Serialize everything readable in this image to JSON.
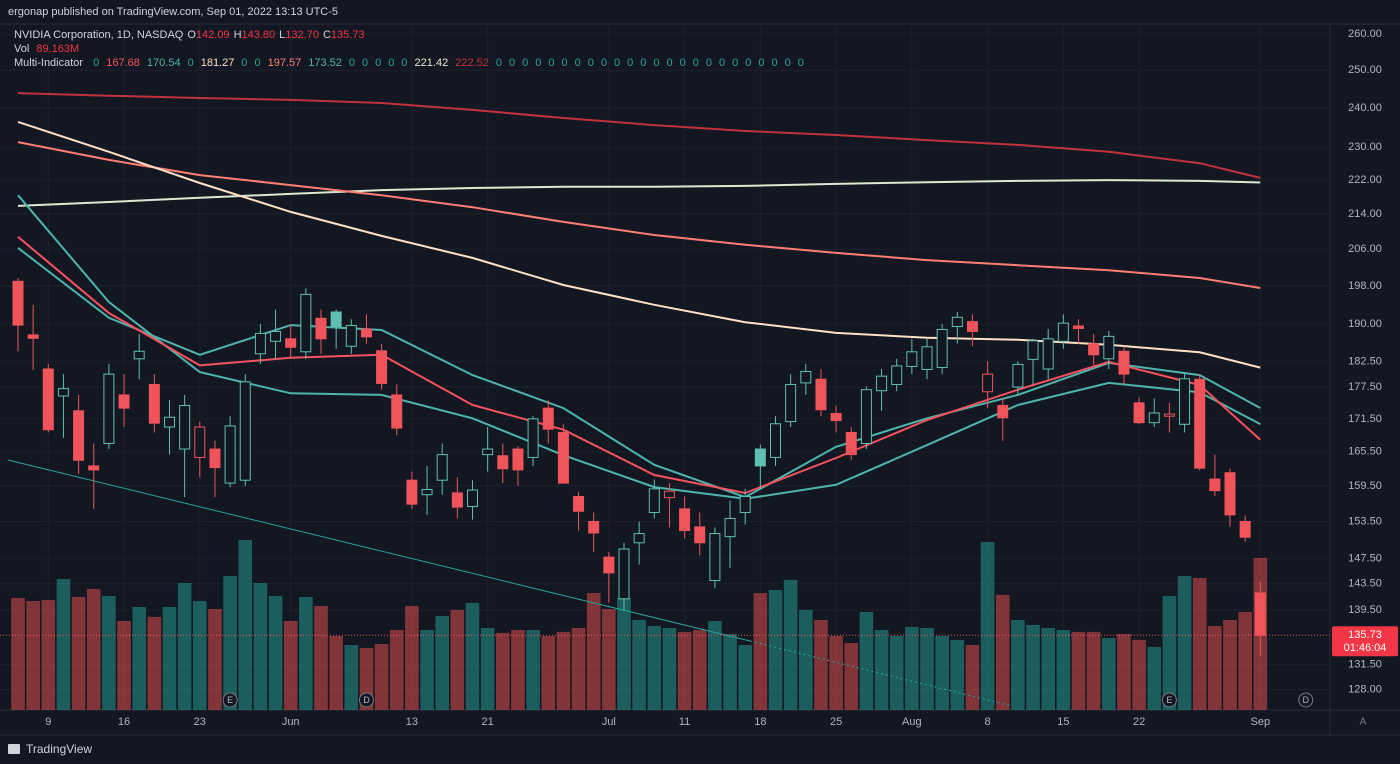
{
  "header": {
    "publisher": "ergonap published on TradingView.com, Sep 01, 2022 13:13 UTC-5",
    "brand": "TradingView"
  },
  "chart_data": {
    "type": "candlestick",
    "candle_style": "hollow",
    "up_color": "#5fbfb3",
    "down_color": "#f0545b",
    "background": "#131722",
    "log_scale": true,
    "grid": true,
    "legend": {
      "symbol": "NVIDIA Corporation, 1D, NASDAQ",
      "ohlc": [
        {
          "key": "O",
          "value": "142.09"
        },
        {
          "key": "H",
          "value": "143.80"
        },
        {
          "key": "L",
          "value": "132.70"
        },
        {
          "key": "C",
          "value": "135.73"
        }
      ],
      "volume_name": "Vol",
      "volume_value": "89.163M"
    },
    "indicator_legend": {
      "name": "Multi-Indicator",
      "values": [
        0,
        167.68,
        170.54,
        0,
        181.27,
        0,
        0,
        197.57,
        173.52,
        0,
        0,
        0,
        0,
        0,
        221.42,
        222.52,
        0,
        0,
        0,
        0,
        0,
        0,
        0,
        0,
        0,
        0,
        0,
        0,
        0,
        0,
        0,
        0,
        0,
        0,
        0,
        0,
        0,
        0,
        0,
        0
      ],
      "colors": [
        "#26a69a",
        "#f7525f",
        "#4db6ac",
        "#26a69a",
        "#ffe0c4",
        "#26a69a",
        "#26a69a",
        "#ff7f72",
        "#4db6ac",
        "#26a69a",
        "#26a69a",
        "#26a69a",
        "#26a69a",
        "#26a69a",
        "#e6ecd6",
        "#c2323e",
        "#26a69a",
        "#26a69a",
        "#26a69a",
        "#26a69a",
        "#26a69a",
        "#26a69a",
        "#26a69a",
        "#26a69a",
        "#26a69a",
        "#26a69a",
        "#26a69a",
        "#26a69a",
        "#26a69a",
        "#26a69a",
        "#26a69a",
        "#26a69a",
        "#26a69a",
        "#26a69a",
        "#26a69a",
        "#26a69a",
        "#26a69a",
        "#26a69a",
        "#26a69a",
        "#26a69a"
      ]
    },
    "categories": [
      null,
      null,
      "9",
      null,
      null,
      null,
      null,
      "16",
      null,
      null,
      null,
      null,
      "23",
      null,
      null,
      null,
      null,
      null,
      "Jun",
      null,
      null,
      null,
      null,
      null,
      null,
      null,
      "13",
      null,
      null,
      null,
      null,
      "21",
      null,
      null,
      null,
      null,
      null,
      null,
      null,
      "Jul",
      null,
      null,
      null,
      null,
      "11",
      null,
      null,
      null,
      null,
      "18",
      null,
      null,
      null,
      null,
      "25",
      null,
      null,
      null,
      null,
      "Aug",
      null,
      null,
      null,
      null,
      "8",
      null,
      null,
      null,
      null,
      "15",
      null,
      null,
      null,
      null,
      "22",
      null,
      null,
      null,
      null,
      null,
      null,
      null,
      "Sep"
    ],
    "open": [
      199.0,
      187.8,
      181,
      175.8,
      173,
      163,
      167,
      176,
      183,
      178,
      170,
      166,
      164.5,
      166,
      160,
      160.5,
      184,
      186.5,
      187,
      184.4,
      191.2,
      192.5,
      185.5,
      189,
      184.6,
      176,
      160.5,
      158,
      160.5,
      158.3,
      156,
      165,
      164.8,
      166,
      164.5,
      173.5,
      169,
      157.7,
      153.5,
      147.7,
      141.2,
      150,
      155,
      157.5,
      155.6,
      152.6,
      144,
      151,
      155,
      166,
      164.5,
      171,
      178.3,
      179,
      172.5,
      169,
      167,
      176.8,
      178,
      181.5,
      180.9,
      181.3,
      189.5,
      190.5,
      176.6,
      174,
      177.5,
      182.9,
      181,
      186.5,
      189.6,
      186,
      183,
      184.5,
      174.5,
      170.8,
      172,
      170.5,
      179,
      160.7,
      161.8,
      153.5,
      142.09
    ],
    "high": [
      199.7,
      194,
      182,
      180,
      176,
      167,
      182,
      180,
      188,
      180,
      175,
      176,
      171,
      167.5,
      172,
      180,
      190,
      193,
      190,
      197.5,
      193,
      193,
      191,
      192,
      186,
      178,
      162,
      163,
      167,
      161,
      160.5,
      170,
      167,
      166.5,
      172,
      175,
      170.5,
      158.5,
      155,
      148.5,
      150,
      153.5,
      160.6,
      160,
      157.7,
      155,
      152.5,
      157,
      159,
      166.8,
      172,
      180,
      182,
      181,
      174,
      170,
      177.6,
      181,
      183,
      187,
      187,
      190,
      192.5,
      192,
      182.5,
      175.5,
      182.5,
      187,
      189,
      192,
      191,
      188,
      188.6,
      185.5,
      175.5,
      175.3,
      174.5,
      180,
      180,
      165,
      162.5,
      154.5,
      143.8
    ],
    "low": [
      184.5,
      180.8,
      169,
      168,
      161.6,
      155.6,
      166,
      170,
      179,
      169,
      165,
      157.6,
      161,
      157.6,
      159.3,
      159.5,
      182,
      183,
      183,
      183,
      184,
      185,
      184,
      186,
      177,
      168.5,
      155.6,
      154.6,
      158,
      154,
      153.8,
      162,
      160,
      159.5,
      163,
      167,
      160,
      152,
      148.5,
      140.6,
      139.5,
      146.5,
      154,
      152.5,
      150.7,
      148,
      142.8,
      146,
      153,
      159,
      163,
      170,
      176,
      172,
      169,
      164,
      166,
      173,
      176.7,
      180,
      179,
      180,
      186,
      185.5,
      173.5,
      167.5,
      176,
      178,
      179,
      185,
      186,
      181.6,
      181,
      178,
      170.5,
      170,
      169,
      169,
      162.2,
      157.8,
      152.6,
      150.2,
      132.7
    ],
    "close": [
      189.8,
      187.1,
      169.5,
      177.2,
      164,
      162.3,
      180,
      173.5,
      184.5,
      170.7,
      171.8,
      174,
      170,
      162.7,
      170.2,
      178.5,
      188.1,
      188.5,
      185.3,
      196.2,
      187,
      189.5,
      189.7,
      187.4,
      178.2,
      169.8,
      156.4,
      158.9,
      165,
      155.9,
      158.8,
      166,
      162.5,
      162.3,
      171.5,
      169.6,
      160,
      155.2,
      151.6,
      145.2,
      149,
      151.5,
      159,
      158.6,
      152,
      150,
      151.5,
      154,
      157.7,
      163,
      170.6,
      178,
      180.5,
      173.2,
      171.2,
      165,
      177,
      179.6,
      181.6,
      184.4,
      185.4,
      188.9,
      191.4,
      188.5,
      180,
      171.7,
      181.9,
      186.6,
      187,
      190.2,
      189.1,
      183.8,
      187.5,
      180,
      170.8,
      172.6,
      172.4,
      179.1,
      162.6,
      158.7,
      154.6,
      150.9,
      135.73
    ],
    "volume": {
      "up_color": "#26a69a",
      "down_color": "#ef5350",
      "values": [
        65.7,
        63.9,
        64.5,
        76.8,
        66.3,
        71,
        66.9,
        52.2,
        60.4,
        54.6,
        60.4,
        74.5,
        63.9,
        59.2,
        78.6,
        99.7,
        74.5,
        66.9,
        52.2,
        66.3,
        61,
        43.4,
        38.1,
        36.4,
        38.7,
        46.9,
        61,
        46.9,
        55.1,
        58.7,
        62.8,
        48.1,
        45.2,
        46.9,
        46.9,
        43.4,
        45.8,
        48.1,
        68.6,
        59.2,
        65.7,
        52.8,
        49.3,
        48.1,
        45.8,
        46.9,
        52.2,
        44.6,
        38.1,
        68.6,
        70.4,
        76.3,
        58.7,
        52.8,
        43.4,
        39.3,
        57.5,
        46.9,
        43.4,
        48.7,
        48.1,
        43.4,
        41.1,
        38.1,
        98.5,
        67.5,
        52.8,
        49.9,
        48.1,
        46.9,
        45.8,
        45.8,
        42.2,
        44.6,
        41.1,
        37,
        66.9,
        78.6,
        77.4,
        49.3,
        52.8,
        57.5,
        89.163
      ]
    },
    "moving_averages": {
      "x": [
        0,
        6,
        12,
        18,
        24,
        30,
        36,
        42,
        48,
        54,
        60,
        66,
        72,
        78,
        82
      ],
      "series": [
        {
          "color": "#c2323e",
          "values": [
            243.9,
            243.2,
            242.6,
            242.1,
            241.3,
            239.5,
            237.4,
            235.6,
            234.1,
            233.1,
            231.8,
            230.6,
            228.9,
            226.1,
            222.52
          ]
        },
        {
          "color": "#dce8cf",
          "values": [
            215.9,
            216.8,
            217.8,
            218.7,
            219.6,
            220.1,
            220.4,
            220.4,
            220.6,
            221.1,
            221.5,
            221.8,
            222.0,
            221.8,
            221.42
          ]
        },
        {
          "color": "#ff7f72",
          "values": [
            231.3,
            226.9,
            223.2,
            220.8,
            218.4,
            215.6,
            212.2,
            209.2,
            207.0,
            205.2,
            203.6,
            202.5,
            201.4,
            199.7,
            197.57
          ]
        },
        {
          "color": "#ffe0c4",
          "values": [
            236.4,
            228.9,
            221.3,
            214.5,
            209.0,
            204.1,
            198.2,
            194.0,
            190.4,
            188.2,
            187.2,
            186.8,
            185.8,
            184.3,
            181.27
          ]
        },
        {
          "color": "#4db6ac",
          "values": [
            218.4,
            194.6,
            180.4,
            176.3,
            176.0,
            171.6,
            164.9,
            159.3,
            157.3,
            159.7,
            166.7,
            174.1,
            178.3,
            176.5,
            170.54
          ]
        },
        {
          "color": "#4db6ac",
          "values": [
            206.3,
            191.3,
            183.8,
            189.8,
            188.8,
            179.8,
            173.5,
            163.2,
            157.6,
            166.4,
            171.6,
            176.0,
            182.2,
            179.8,
            173.52
          ]
        },
        {
          "color": "#f7525f",
          "values": [
            208.8,
            192.3,
            181.7,
            183.2,
            183.8,
            174.1,
            169.5,
            161.4,
            158.3,
            164.4,
            171.3,
            177.0,
            182.4,
            177.9,
            167.68
          ]
        }
      ]
    },
    "events": [
      {
        "label": "E",
        "at": 14
      },
      {
        "label": "D",
        "at": 23
      },
      {
        "label": "E",
        "at": 76
      },
      {
        "label": "D",
        "at": 85
      }
    ],
    "countdown": "01:46:04",
    "auto_button": "A",
    "ylim": [
      125.2,
      262.8
    ],
    "yticks": [
      {
        "value": 260,
        "label": "260.00"
      },
      {
        "value": 250,
        "label": "250.00"
      },
      {
        "value": 240,
        "label": "240.00"
      },
      {
        "value": 230,
        "label": "230.00"
      },
      {
        "value": 222,
        "label": "222.00"
      },
      {
        "value": 214,
        "label": "214.00"
      },
      {
        "value": 206,
        "label": "206.00"
      },
      {
        "value": 198,
        "label": "198.00"
      },
      {
        "value": 190,
        "label": "190.00"
      },
      {
        "value": 182.5,
        "label": "182.50"
      },
      {
        "value": 177.5,
        "label": "177.50"
      },
      {
        "value": 171.5,
        "label": "171.50"
      },
      {
        "value": 165.5,
        "label": "165.50"
      },
      {
        "value": 159.5,
        "label": "159.50"
      },
      {
        "value": 153.5,
        "label": "153.50"
      },
      {
        "value": 147.5,
        "label": "147.50"
      },
      {
        "value": 143.5,
        "label": "143.50"
      },
      {
        "value": 139.5,
        "label": "139.50"
      },
      {
        "value": 131.5,
        "label": "131.50"
      },
      {
        "value": 128,
        "label": "128.00"
      }
    ]
  }
}
